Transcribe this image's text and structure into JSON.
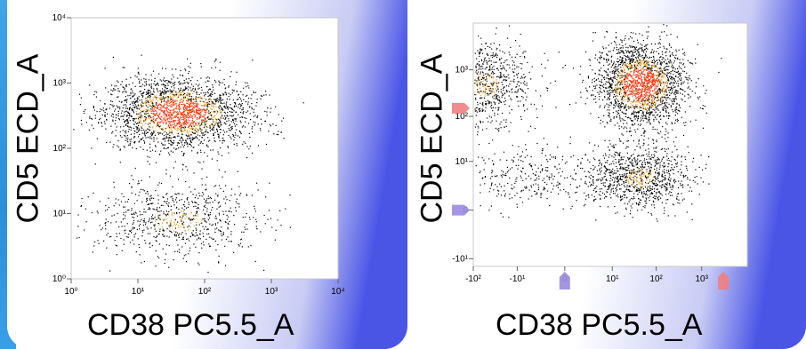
{
  "chart_data": [
    {
      "type": "scatter",
      "title": "",
      "xlabel": "CD38 PC5.5_A",
      "ylabel": "CD5 ECD_A",
      "x_scale": "log",
      "y_scale": "log",
      "xlim": [
        1,
        10000
      ],
      "ylim": [
        1,
        10000
      ],
      "x_ticks": [
        {
          "value": 1,
          "label": "10⁰"
        },
        {
          "value": 10,
          "label": "10¹"
        },
        {
          "value": 100,
          "label": "10²"
        },
        {
          "value": 1000,
          "label": "10³"
        },
        {
          "value": 10000,
          "label": "10⁴"
        }
      ],
      "y_ticks": [
        {
          "value": 1,
          "label": "10⁰"
        },
        {
          "value": 10,
          "label": "10¹"
        },
        {
          "value": 100,
          "label": "10²"
        },
        {
          "value": 1000,
          "label": "10³"
        },
        {
          "value": 10000,
          "label": "10⁴"
        }
      ],
      "clusters": [
        {
          "name": "",
          "x_center": 40,
          "y_center": 350,
          "x_spread_decades": 0.55,
          "y_spread_decades": 0.28,
          "count": 5200,
          "density": "high"
        },
        {
          "name": "",
          "x_center": 40,
          "y_center": 8,
          "x_spread_decades": 0.6,
          "y_spread_decades": 0.3,
          "count": 1700,
          "density": "medium"
        }
      ],
      "grid": false,
      "background_color": "#ffffff",
      "point_colors": [
        "#000000",
        "#f0a020",
        "#ff3a10"
      ]
    },
    {
      "type": "scatter",
      "title": "",
      "xlabel": "CD38 PC5.5_A",
      "ylabel": "CD5 ECD_A",
      "x_scale": "biexponential",
      "y_scale": "biexponential",
      "xlim": [
        -100,
        10000
      ],
      "ylim": [
        -15,
        10000
      ],
      "x_ticks": [
        {
          "value": -100,
          "label": "-10²"
        },
        {
          "value": -10,
          "label": "-10¹"
        },
        {
          "value": 0,
          "label": "0"
        },
        {
          "value": 10,
          "label": "10¹"
        },
        {
          "value": 100,
          "label": "10²"
        },
        {
          "value": 1000,
          "label": "10³"
        }
      ],
      "y_ticks": [
        {
          "value": -10,
          "label": "-10¹"
        },
        {
          "value": 0,
          "label": "0"
        },
        {
          "value": 10,
          "label": "10¹"
        },
        {
          "value": 100,
          "label": "10²"
        },
        {
          "value": 1000,
          "label": "10³"
        }
      ],
      "clusters": [
        {
          "name": "",
          "x_center": -60,
          "y_center": 500,
          "x_spread": 0.55,
          "y_spread": 0.45,
          "count": 2000,
          "density": "medium"
        },
        {
          "name": "",
          "x_center": 45,
          "y_center": 500,
          "x_spread": 0.5,
          "y_spread": 0.45,
          "count": 4800,
          "density": "high"
        },
        {
          "name": "",
          "x_center": 40,
          "y_center": 4,
          "x_spread": 0.55,
          "y_spread": 0.35,
          "count": 2200,
          "density": "medium"
        },
        {
          "name": "",
          "x_center": -8,
          "y_center": 4,
          "x_spread": 0.8,
          "y_spread": 0.35,
          "count": 700,
          "density": "low"
        }
      ],
      "markers": [
        {
          "axis": "y",
          "value": 150,
          "color": "#f08080"
        },
        {
          "axis": "y",
          "value": 0,
          "color": "#9b8be0"
        },
        {
          "axis": "x",
          "value": 0,
          "color": "#9b8be0"
        },
        {
          "axis": "x",
          "value": 3000,
          "color": "#f08080"
        }
      ],
      "grid": false,
      "background_color": "#ffffff",
      "point_colors": [
        "#000000",
        "#f0a020",
        "#ff3a10"
      ]
    }
  ]
}
